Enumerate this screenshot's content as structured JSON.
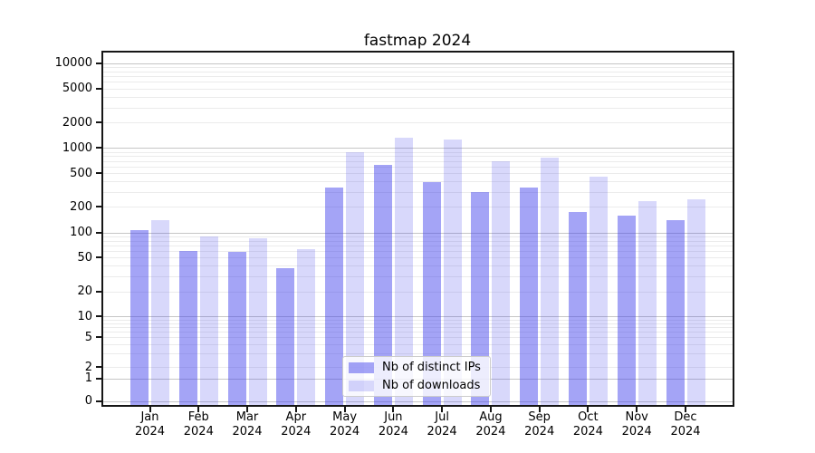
{
  "chart_data": {
    "type": "bar",
    "title": "fastmap 2024",
    "categories": [
      "Jan",
      "Feb",
      "Mar",
      "Apr",
      "May",
      "Jun",
      "Jul",
      "Aug",
      "Sep",
      "Oct",
      "Nov",
      "Dec"
    ],
    "x_year_label": "2024",
    "series": [
      {
        "name": "Nb of distinct IPs",
        "color": "rgba(62,62,235,0.47)",
        "values": [
          108,
          60,
          59,
          38,
          340,
          620,
          395,
          297,
          340,
          175,
          158,
          140
        ]
      },
      {
        "name": "Nb of downloads",
        "color": "rgba(62,62,235,0.20)",
        "values": [
          140,
          91,
          86,
          63,
          890,
          1330,
          1250,
          700,
          775,
          455,
          233,
          247
        ]
      }
    ],
    "yaxis": {
      "scale": "symlog",
      "tick_values": [
        0,
        1,
        2,
        5,
        10,
        20,
        50,
        100,
        200,
        500,
        1000,
        2000,
        5000,
        10000
      ],
      "tick_labels": [
        "0",
        "1",
        "2",
        "5",
        "10",
        "20",
        "50",
        "100",
        "200",
        "500",
        "1000",
        "2000",
        "5000",
        "10000"
      ],
      "ylim": [
        0,
        13000
      ]
    },
    "grid": {
      "major_color": "#c6c6c6",
      "minor_color": "#ebebeb",
      "major_values": [
        0,
        1,
        10,
        100,
        1000,
        10000
      ],
      "minor_decades": [
        1,
        10,
        100,
        1000
      ],
      "minor_multipliers": [
        2,
        3,
        4,
        5,
        6,
        7,
        8,
        9
      ]
    },
    "legend": {
      "position": "bottom-center"
    },
    "xlabel": "",
    "ylabel": ""
  }
}
